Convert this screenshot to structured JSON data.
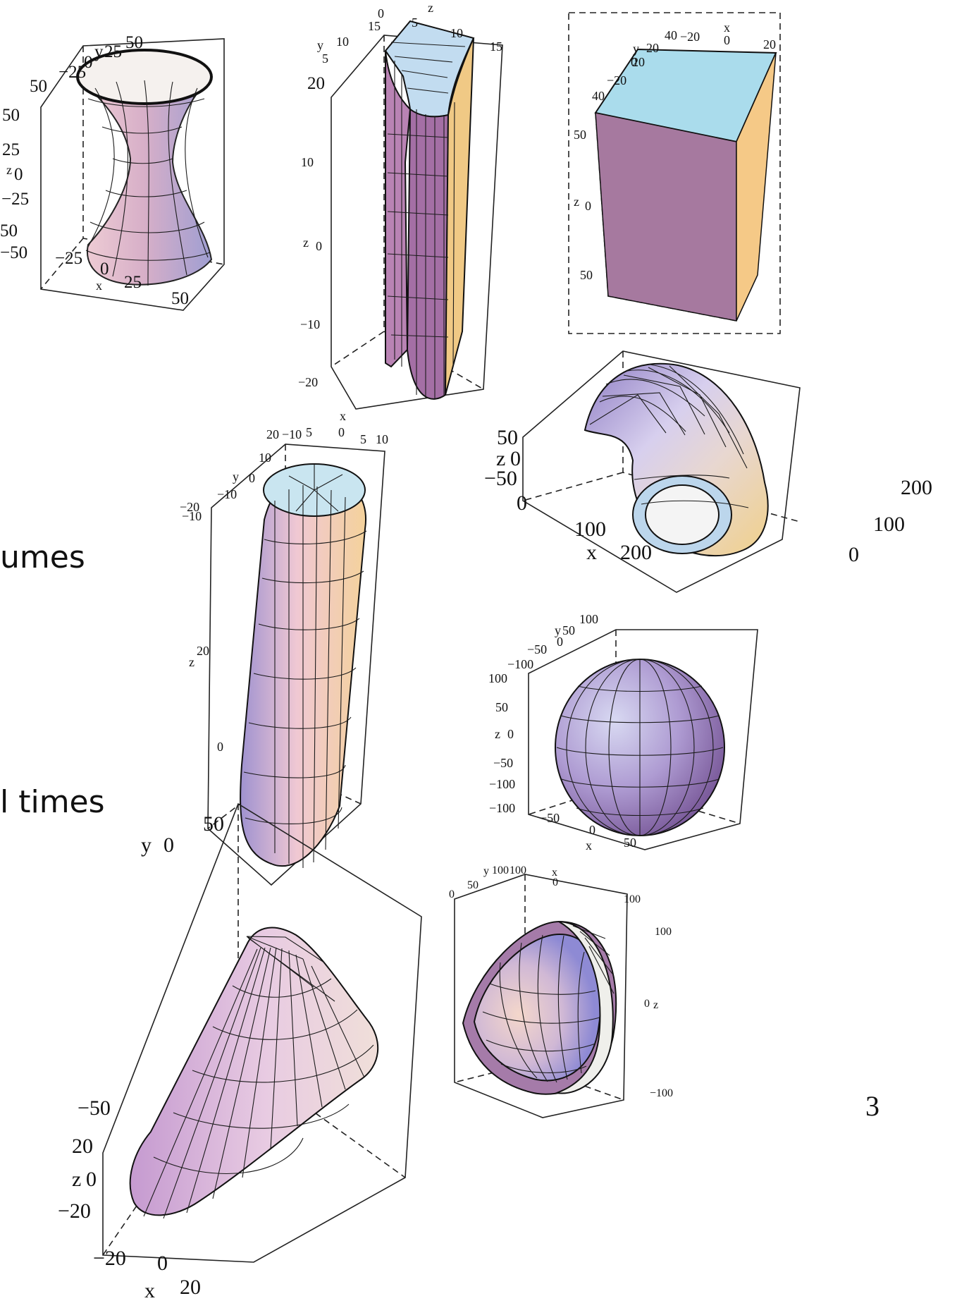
{
  "slide": {
    "left_text": [
      "umes",
      "l times"
    ],
    "page_number": "3"
  },
  "plots": [
    {
      "name": "hyperboloid-plot",
      "labels": [
        "y",
        "25",
        "50",
        "0",
        "−25",
        "50",
        "50",
        "25",
        "z",
        "0",
        "−25",
        "50",
        "−50",
        "−25",
        "0",
        "x",
        "25",
        "50"
      ]
    },
    {
      "name": "cylindrical-wedge-plot",
      "labels": [
        "0",
        "z",
        "15",
        "5",
        "10",
        "15",
        "y",
        "10",
        "5",
        "20",
        "10",
        "z",
        "0",
        "−10",
        "−20"
      ]
    },
    {
      "name": "box-plot",
      "labels": [
        "40",
        "−20",
        "x",
        "0",
        "20",
        "y",
        "20",
        "0",
        "−20",
        "20",
        "40",
        "50",
        "z",
        "0",
        "50"
      ]
    },
    {
      "name": "elliptic-cylinder-plot",
      "labels": [
        "x",
        "20",
        "−10",
        "5",
        "0",
        "5",
        "10",
        "10",
        "y",
        "0",
        "−10",
        "−20",
        "−10",
        "20",
        "z",
        "0"
      ]
    },
    {
      "name": "curved-pipe-plot",
      "labels": [
        "50",
        "z",
        "0",
        "−50",
        "0",
        "100",
        "x",
        "200",
        "200",
        "100",
        "0"
      ]
    },
    {
      "name": "sphere-plot",
      "labels": [
        "y",
        "50",
        "100",
        "0",
        "−50",
        "−100",
        "100",
        "50",
        "z",
        "0",
        "−50",
        "−100",
        "−100",
        "−50",
        "0",
        "x",
        "50"
      ]
    },
    {
      "name": "cone-plot",
      "labels": [
        "50",
        "y",
        "0",
        "−50",
        "20",
        "z",
        "0",
        "−20",
        "−20",
        "0",
        "x",
        "20"
      ]
    },
    {
      "name": "hemispherical-shell-plot",
      "labels": [
        "y",
        "100",
        "100",
        "x",
        "0",
        "50",
        "0",
        "100",
        "100",
        "0",
        "z",
        "−100"
      ]
    }
  ]
}
